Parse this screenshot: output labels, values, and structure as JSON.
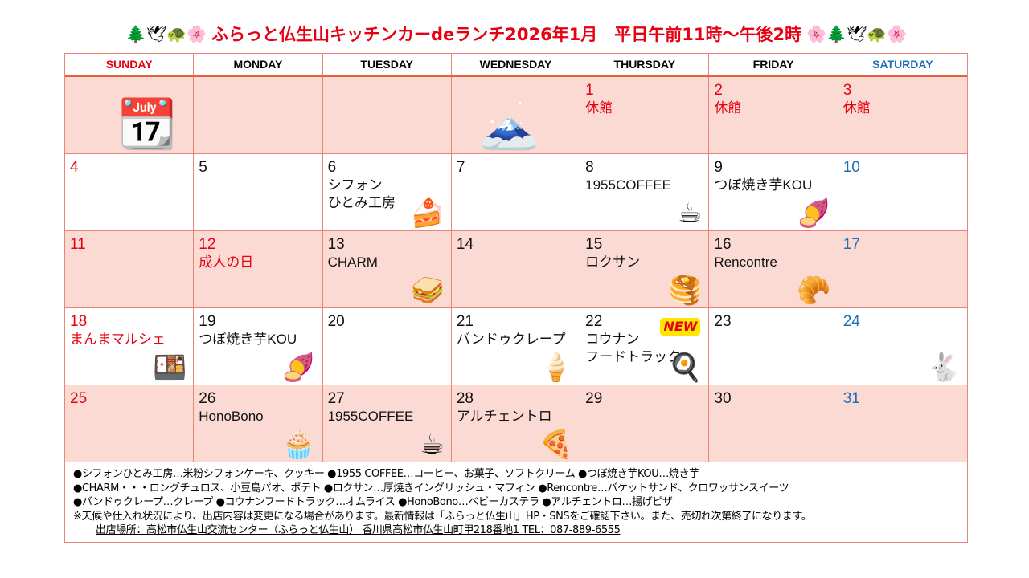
{
  "header": {
    "title": "ふらっと仏生山キッチンカーdeランチ2026年1月　平日午前11時〜午後2時",
    "decor_left": "🌲🕊🐢🌸",
    "decor_right": "🌸🌲🕊🐢🌸"
  },
  "weekdays": [
    "SUNDAY",
    "MONDAY",
    "TUESDAY",
    "WEDNESDAY",
    "THURSDAY",
    "FRIDAY",
    "SATURDAY"
  ],
  "colors": {
    "holiday": "#e60012",
    "saturday": "#1f6fb5",
    "pink": "#fcdad4",
    "border": "#e8867a"
  },
  "weeks": [
    [
      {
        "day": "",
        "lines": [],
        "icon": "calendar-icon",
        "glyph": "📆"
      },
      {
        "day": "",
        "lines": []
      },
      {
        "day": "",
        "lines": []
      },
      {
        "day": "",
        "lines": [],
        "icon": "mount-fuji-icon",
        "glyph": "🗻"
      },
      {
        "day": "1",
        "lines": [
          "休館"
        ],
        "red": true
      },
      {
        "day": "2",
        "lines": [
          "休館"
        ],
        "red": true
      },
      {
        "day": "3",
        "lines": [
          "休館"
        ],
        "red": true
      }
    ],
    [
      {
        "day": "4",
        "lines": [],
        "red": true
      },
      {
        "day": "5",
        "lines": []
      },
      {
        "day": "6",
        "lines": [
          "シフォン",
          "ひとみ工房"
        ],
        "icon": "chiffon-cake-icon",
        "glyph": "🍰"
      },
      {
        "day": "7",
        "lines": []
      },
      {
        "day": "8",
        "lines": [
          "1955COFFEE"
        ],
        "icon": "coffee-icon",
        "glyph": "☕"
      },
      {
        "day": "9",
        "lines": [
          "つぼ焼き芋KOU"
        ],
        "icon": "sweet-potato-icon",
        "glyph": "🍠"
      },
      {
        "day": "10",
        "lines": [],
        "blue": true
      }
    ],
    [
      {
        "day": "11",
        "lines": [],
        "red": true
      },
      {
        "day": "12",
        "lines": [
          "成人の日"
        ],
        "red": true
      },
      {
        "day": "13",
        "lines": [
          "CHARM"
        ],
        "icon": "sandwich-icon",
        "glyph": "🥪"
      },
      {
        "day": "14",
        "lines": []
      },
      {
        "day": "15",
        "lines": [
          "ロクサン"
        ],
        "icon": "muffin-icon",
        "glyph": "🥞"
      },
      {
        "day": "16",
        "lines": [
          "Rencontre"
        ],
        "icon": "croissant-icon",
        "glyph": "🥐"
      },
      {
        "day": "17",
        "lines": [],
        "blue": true
      }
    ],
    [
      {
        "day": "18",
        "lines": [
          "まんまマルシェ"
        ],
        "red": true,
        "icon": "bento-icon",
        "glyph": "🍱"
      },
      {
        "day": "19",
        "lines": [
          "つぼ焼き芋KOU"
        ],
        "icon": "sweet-potato-icon",
        "glyph": "🍠"
      },
      {
        "day": "20",
        "lines": []
      },
      {
        "day": "21",
        "lines": [
          "バンドゥクレープ"
        ],
        "icon": "crepe-icon",
        "glyph": "🍦"
      },
      {
        "day": "22",
        "lines": [
          "コウナン",
          "フードトラック"
        ],
        "icon": "omurice-icon",
        "glyph": "🍳",
        "badge": "NEW"
      },
      {
        "day": "23",
        "lines": []
      },
      {
        "day": "24",
        "lines": [],
        "blue": true,
        "icon": "snow-rabbit-icon",
        "glyph": "🐇"
      }
    ],
    [
      {
        "day": "25",
        "lines": [],
        "red": true
      },
      {
        "day": "26",
        "lines": [
          "HonoBono"
        ],
        "icon": "castella-icon",
        "glyph": "🧁"
      },
      {
        "day": "27",
        "lines": [
          "1955COFFEE"
        ],
        "icon": "coffee-icon",
        "glyph": "☕"
      },
      {
        "day": "28",
        "lines": [
          "アルチェントロ"
        ],
        "icon": "pizza-icon",
        "glyph": "🍕"
      },
      {
        "day": "29",
        "lines": []
      },
      {
        "day": "30",
        "lines": []
      },
      {
        "day": "31",
        "lines": [],
        "blue": true
      }
    ]
  ],
  "footer": {
    "lines": [
      "●シフォンひとみ工房…米粉シフォンケーキ、クッキー ●1955 COFFEE…コーヒー、お菓子、ソフトクリーム ●つぼ焼き芋KOU…焼き芋",
      "●CHARM・・・ロングチュロス、小豆島パオ、ポテト ●ロクサン…厚焼きイングリッシュ・マフィン ●Rencontre…バケットサンド、クロワッサンスイーツ",
      "●バンドゥクレープ…クレープ ●コウナンフードトラック…オムライス ●HonoBono…ベビーカステラ ●アルチェントロ…揚げピザ",
      "※天候や仕入れ状況により、出店内容は変更になる場合があります。最新情報は「ふらっと仏生山」HP・SNSをご確認下さい。また、売切れ次第終了になります。"
    ],
    "address": "出店場所：高松市仏生山交流センター（ふらっと仏生山） 香川県高松市仏生山町甲218番地1 TEL：087-889-6555"
  }
}
